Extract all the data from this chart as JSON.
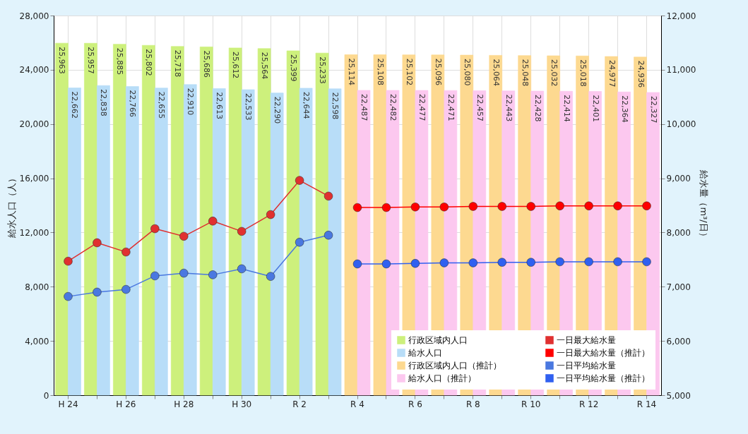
{
  "chart_data": {
    "type": "bar",
    "ylabel": "給水人口（人）",
    "y2label": "給水量（m³/日）",
    "categories": [
      "H 24",
      null,
      "H 26",
      null,
      "H 28",
      null,
      "H 30",
      null,
      "R 2",
      null,
      "R 4",
      null,
      "R 6",
      null,
      "R 8",
      null,
      "R 10",
      null,
      "R 12",
      null,
      "R 14"
    ],
    "series": [
      {
        "name": "行政区域内人口",
        "color": "#cdf07c",
        "values": [
          25963,
          25957,
          25885,
          25802,
          25718,
          25686,
          25612,
          25564,
          25399,
          25233,
          null,
          null,
          null,
          null,
          null,
          null,
          null,
          null,
          null,
          null,
          null
        ],
        "value_labels": [
          "25,963",
          "25,957",
          "25,885",
          "25,802",
          "25,718",
          "25,686",
          "25,612",
          "25,564",
          "25,399",
          "25,233",
          null,
          null,
          null,
          null,
          null,
          null,
          null,
          null,
          null,
          null,
          null
        ]
      },
      {
        "name": "給水人口",
        "color": "#b8ddf8",
        "values": [
          22662,
          22838,
          22766,
          22655,
          22910,
          22613,
          22533,
          22290,
          22644,
          22598,
          null,
          null,
          null,
          null,
          null,
          null,
          null,
          null,
          null,
          null,
          null
        ],
        "value_labels": [
          "22,662",
          "22,838",
          "22,766",
          "22,655",
          "22,910",
          "22,613",
          "22,533",
          "22,290",
          "22,644",
          "22,598",
          null,
          null,
          null,
          null,
          null,
          null,
          null,
          null,
          null,
          null,
          null
        ]
      },
      {
        "name": "行政区域内人口（推計）",
        "color": "#fdd990",
        "values": [
          null,
          null,
          null,
          null,
          null,
          null,
          null,
          null,
          null,
          null,
          25114,
          25108,
          25102,
          25096,
          25080,
          25064,
          25048,
          25032,
          25018,
          24977,
          24936
        ],
        "value_labels": [
          null,
          null,
          null,
          null,
          null,
          null,
          null,
          null,
          null,
          null,
          "25,114",
          "25,108",
          "25,102",
          "25,096",
          "25,080",
          "25,064",
          "25,048",
          "25,032",
          "25,018",
          "24,977",
          "24,936"
        ]
      },
      {
        "name": "給水人口（推計）",
        "color": "#fcc8ef",
        "values": [
          null,
          null,
          null,
          null,
          null,
          null,
          null,
          null,
          null,
          null,
          22487,
          22482,
          22477,
          22471,
          22457,
          22443,
          22428,
          22414,
          22401,
          22364,
          22327
        ],
        "value_labels": [
          null,
          null,
          null,
          null,
          null,
          null,
          null,
          null,
          null,
          null,
          "22,487",
          "22,482",
          "22,477",
          "22,471",
          "22,457",
          "22,443",
          "22,428",
          "22,414",
          "22,401",
          "22,364",
          "22,327"
        ]
      },
      {
        "name": "一日最大給水量",
        "type": "line",
        "axis": "y2",
        "color": "#e03030",
        "values": [
          7470,
          7810,
          7640,
          8070,
          7930,
          8210,
          8020,
          8330,
          8960,
          8670,
          null,
          null,
          null,
          null,
          null,
          null,
          null,
          null,
          null,
          null,
          null
        ]
      },
      {
        "name": "一日最大給水量（推計）",
        "type": "line",
        "axis": "y2",
        "color": "#ff0000",
        "values": [
          null,
          null,
          null,
          null,
          null,
          null,
          null,
          null,
          null,
          null,
          8460,
          8460,
          8470,
          8470,
          8480,
          8480,
          8480,
          8490,
          8490,
          8490,
          8490
        ]
      },
      {
        "name": "一日平均給水量",
        "type": "line",
        "axis": "y2",
        "color": "#4a78e0",
        "values": [
          6820,
          6900,
          6950,
          7200,
          7250,
          7220,
          7330,
          7190,
          7820,
          7950,
          null,
          null,
          null,
          null,
          null,
          null,
          null,
          null,
          null,
          null,
          null
        ]
      },
      {
        "name": "一日平均給水量（推計）",
        "type": "line",
        "axis": "y2",
        "color": "#3060f0",
        "values": [
          null,
          null,
          null,
          null,
          null,
          null,
          null,
          null,
          null,
          null,
          7420,
          7420,
          7430,
          7440,
          7440,
          7450,
          7450,
          7460,
          7460,
          7460,
          7460
        ]
      }
    ],
    "ylim": [
      0,
      28000
    ],
    "yticks": [
      0,
      {
        "value": 4000,
        "label": "4,000"
      },
      {
        "value": 8000,
        "label": "8,000"
      },
      {
        "value": 12000,
        "label": "12,000"
      },
      {
        "value": 16000,
        "label": "16,000"
      },
      {
        "value": 20000,
        "label": "20,000"
      },
      {
        "value": 24000,
        "label": "24,000"
      },
      {
        "value": 28000,
        "label": "28,000"
      }
    ],
    "y2lim": [
      5000,
      12000
    ],
    "y2ticks": [
      {
        "value": 5000,
        "label": "5,000"
      },
      {
        "value": 6000,
        "label": "6,000"
      },
      {
        "value": 7000,
        "label": "7,000"
      },
      {
        "value": 8000,
        "label": "8,000"
      },
      {
        "value": 9000,
        "label": "9,000"
      },
      {
        "value": 10000,
        "label": "10,000"
      },
      {
        "value": 11000,
        "label": "11,000"
      },
      {
        "value": 12000,
        "label": "12,000"
      }
    ],
    "grid": true,
    "legend": "bottom right",
    "marker": "circle"
  }
}
